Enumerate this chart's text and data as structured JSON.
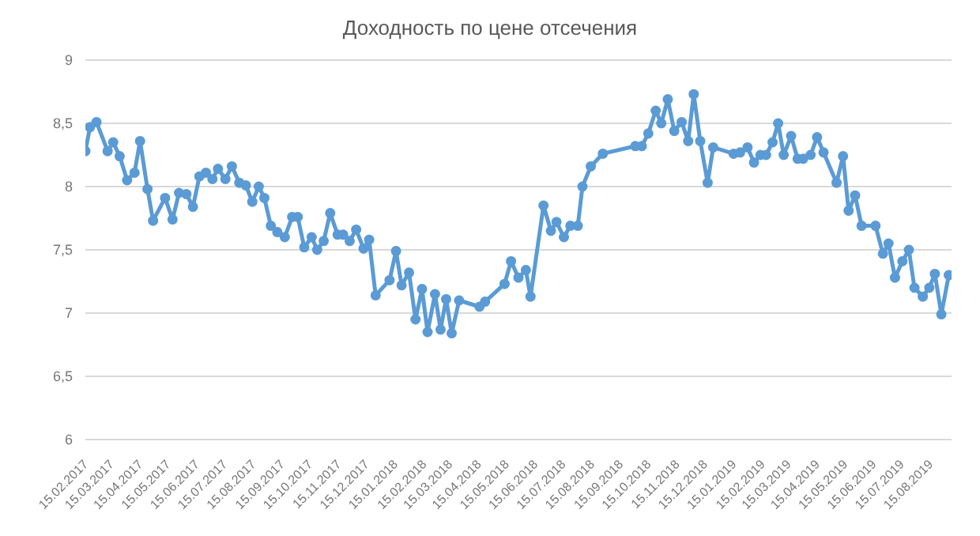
{
  "chart_data": {
    "type": "line",
    "title": "Доходность по цене отсечения",
    "x": [
      "2017-02-15",
      "2017-02-20",
      "2017-02-27",
      "2017-03-11",
      "2017-03-17",
      "2017-03-24",
      "2017-04-01",
      "2017-04-09",
      "2017-04-15",
      "2017-04-23",
      "2017-04-29",
      "2017-05-12",
      "2017-05-20",
      "2017-05-27",
      "2017-06-04",
      "2017-06-11",
      "2017-06-18",
      "2017-06-25",
      "2017-07-02",
      "2017-07-08",
      "2017-07-16",
      "2017-07-23",
      "2017-07-31",
      "2017-08-07",
      "2017-08-14",
      "2017-08-21",
      "2017-08-27",
      "2017-09-03",
      "2017-09-10",
      "2017-09-18",
      "2017-09-26",
      "2017-10-02",
      "2017-10-09",
      "2017-10-17",
      "2017-10-23",
      "2017-10-30",
      "2017-11-06",
      "2017-11-14",
      "2017-11-20",
      "2017-11-27",
      "2017-12-04",
      "2017-12-12",
      "2017-12-18",
      "2017-12-25",
      "2018-01-09",
      "2018-01-16",
      "2018-01-22",
      "2018-01-30",
      "2018-02-06",
      "2018-02-13",
      "2018-02-19",
      "2018-02-27",
      "2018-03-05",
      "2018-03-11",
      "2018-03-17",
      "2018-03-25",
      "2018-04-16",
      "2018-04-22",
      "2018-05-13",
      "2018-05-20",
      "2018-05-28",
      "2018-06-05",
      "2018-06-10",
      "2018-06-24",
      "2018-07-02",
      "2018-07-08",
      "2018-07-16",
      "2018-07-23",
      "2018-07-31",
      "2018-08-05",
      "2018-08-14",
      "2018-08-27",
      "2018-10-01",
      "2018-10-08",
      "2018-10-15",
      "2018-10-23",
      "2018-10-29",
      "2018-11-05",
      "2018-11-12",
      "2018-11-20",
      "2018-11-27",
      "2018-12-03",
      "2018-12-10",
      "2018-12-18",
      "2018-12-24",
      "2019-01-15",
      "2019-01-22",
      "2019-01-30",
      "2019-02-06",
      "2019-02-13",
      "2019-02-19",
      "2019-02-26",
      "2019-03-04",
      "2019-03-10",
      "2019-03-18",
      "2019-03-25",
      "2019-03-31",
      "2019-04-08",
      "2019-04-15",
      "2019-04-22",
      "2019-05-06",
      "2019-05-13",
      "2019-05-19",
      "2019-05-26",
      "2019-06-02",
      "2019-06-17",
      "2019-06-25",
      "2019-07-01",
      "2019-07-08",
      "2019-07-16",
      "2019-07-23",
      "2019-07-29",
      "2019-08-07",
      "2019-08-14",
      "2019-08-20",
      "2019-08-27",
      "2019-09-04"
    ],
    "series": [
      {
        "color": "#5b9bd5",
        "values": [
          8.28,
          8.47,
          8.51,
          8.28,
          8.35,
          8.24,
          8.05,
          8.11,
          8.36,
          7.98,
          7.73,
          7.91,
          7.74,
          7.95,
          7.94,
          7.84,
          8.08,
          8.11,
          8.06,
          8.14,
          8.06,
          8.16,
          8.03,
          8.01,
          7.88,
          8.0,
          7.91,
          7.69,
          7.64,
          7.6,
          7.76,
          7.76,
          7.52,
          7.6,
          7.5,
          7.57,
          7.79,
          7.62,
          7.62,
          7.57,
          7.66,
          7.51,
          7.58,
          7.14,
          7.26,
          7.49,
          7.22,
          7.32,
          6.95,
          7.19,
          6.85,
          7.15,
          6.87,
          7.11,
          6.84,
          7.1,
          7.05,
          7.09,
          7.23,
          7.41,
          7.28,
          7.34,
          7.13,
          7.85,
          7.65,
          7.72,
          7.6,
          7.69,
          7.69,
          8.0,
          8.16,
          8.26,
          8.32,
          8.32,
          8.42,
          8.6,
          8.5,
          8.69,
          8.44,
          8.51,
          8.36,
          8.73,
          8.36,
          8.03,
          8.31,
          8.26,
          8.27,
          8.31,
          8.19,
          8.25,
          8.25,
          8.35,
          8.5,
          8.25,
          8.4,
          8.22,
          8.22,
          8.25,
          8.39,
          8.27,
          8.03,
          8.24,
          7.81,
          7.93,
          7.69,
          7.69,
          7.47,
          7.55,
          7.28,
          7.41,
          7.5,
          7.2,
          7.13,
          7.2,
          7.31,
          6.99,
          7.3
        ]
      }
    ],
    "xlim": [
      "2017-02-15",
      "2019-09-07"
    ],
    "xticks": [
      {
        "value": "2017-02-15",
        "label": "15.02.2017"
      },
      {
        "value": "2017-03-15",
        "label": "15.03.2017"
      },
      {
        "value": "2017-04-15",
        "label": "15.04.2017"
      },
      {
        "value": "2017-05-15",
        "label": "15.05.2017"
      },
      {
        "value": "2017-06-15",
        "label": "15.06.2017"
      },
      {
        "value": "2017-07-15",
        "label": "15.07.2017"
      },
      {
        "value": "2017-08-15",
        "label": "15.08.2017"
      },
      {
        "value": "2017-09-15",
        "label": "15.09.2017"
      },
      {
        "value": "2017-10-15",
        "label": "15.10.2017"
      },
      {
        "value": "2017-11-15",
        "label": "15.11.2017"
      },
      {
        "value": "2017-12-15",
        "label": "15.12.2017"
      },
      {
        "value": "2018-01-15",
        "label": "15.01.2018"
      },
      {
        "value": "2018-02-15",
        "label": "15.02.2018"
      },
      {
        "value": "2018-03-15",
        "label": "15.03.2018"
      },
      {
        "value": "2018-04-15",
        "label": "15.04.2018"
      },
      {
        "value": "2018-05-15",
        "label": "15.05.2018"
      },
      {
        "value": "2018-06-15",
        "label": "15.06.2018"
      },
      {
        "value": "2018-07-15",
        "label": "15.07.2018"
      },
      {
        "value": "2018-08-15",
        "label": "15.08.2018"
      },
      {
        "value": "2018-09-15",
        "label": "15.09.2018"
      },
      {
        "value": "2018-10-15",
        "label": "15.10.2018"
      },
      {
        "value": "2018-11-15",
        "label": "15.11.2018"
      },
      {
        "value": "2018-12-15",
        "label": "15.12.2018"
      },
      {
        "value": "2019-01-15",
        "label": "15.01.2019"
      },
      {
        "value": "2019-02-15",
        "label": "15.02.2019"
      },
      {
        "value": "2019-03-15",
        "label": "15.03.2019"
      },
      {
        "value": "2019-04-15",
        "label": "15.04.2019"
      },
      {
        "value": "2019-05-15",
        "label": "15.05.2019"
      },
      {
        "value": "2019-06-15",
        "label": "15.06.2019"
      },
      {
        "value": "2019-07-15",
        "label": "15.07.2019"
      },
      {
        "value": "2019-08-15",
        "label": "15.08.2019"
      }
    ],
    "ylim": [
      6,
      9
    ],
    "yticks": [
      6,
      {
        "value": 6.5,
        "label": "6,5"
      },
      7,
      {
        "value": 7.5,
        "label": "7,5"
      },
      8,
      {
        "value": 8.5,
        "label": "8,5"
      },
      9
    ],
    "grid": "y",
    "marker": "circle",
    "line_style": "solid",
    "legend": false
  }
}
